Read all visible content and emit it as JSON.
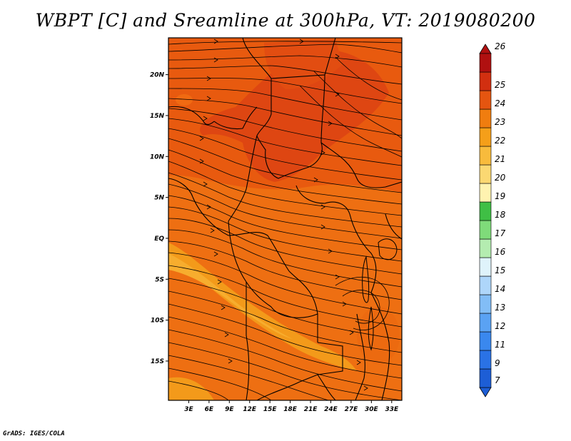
{
  "title": "WBPT [C] and Sreamline at 300hPa, VT: 2019080200",
  "credit": "GrADS: IGES/COLA",
  "map": {
    "lon_ticks": [
      "3E",
      "6E",
      "9E",
      "12E",
      "15E",
      "18E",
      "21E",
      "24E",
      "27E",
      "30E",
      "33E"
    ],
    "lat_ticks": [
      "20N",
      "15N",
      "10N",
      "5N",
      "EQ",
      "5S",
      "10S",
      "15S"
    ],
    "lon_values": [
      3,
      6,
      9,
      12,
      15,
      18,
      21,
      24,
      27,
      30,
      33
    ],
    "lat_values": [
      20,
      15,
      10,
      5,
      0,
      -5,
      -10,
      -15
    ],
    "lon_range": [
      0,
      34.5
    ],
    "lat_range": [
      -19.8,
      24.5
    ]
  },
  "colorbar": {
    "labels": [
      "7",
      "9",
      "11",
      "12",
      "13",
      "14",
      "15",
      "16",
      "17",
      "18",
      "19",
      "20",
      "21",
      "22",
      "23",
      "24",
      "25",
      "26"
    ],
    "colors": [
      "#1d5ed6",
      "#2a72e5",
      "#3a88ee",
      "#5aa2f3",
      "#82bdf6",
      "#aed6fa",
      "#dff3fb",
      "#b4ecb0",
      "#7fdb7a",
      "#3fbf45",
      "#fff3b0",
      "#fbd872",
      "#f8bb3c",
      "#f59f19",
      "#f07d0f",
      "#e55510",
      "#d22f10",
      "#b01010"
    ]
  },
  "chart_data": {
    "type": "heatmap",
    "title": "WBPT [C] and Sreamline at 300hPa, VT: 2019080200",
    "variable": "WBPT [C]",
    "level": "300hPa",
    "valid_time": "2019080200",
    "x_ticks": [
      "3E",
      "6E",
      "9E",
      "12E",
      "15E",
      "18E",
      "21E",
      "24E",
      "27E",
      "30E",
      "33E"
    ],
    "y_ticks": [
      "20N",
      "15N",
      "10N",
      "5N",
      "EQ",
      "5S",
      "10S",
      "15S"
    ],
    "color_levels": [
      7,
      9,
      11,
      12,
      13,
      14,
      15,
      16,
      17,
      18,
      19,
      20,
      21,
      22,
      23,
      24,
      25,
      26
    ],
    "dominant_range": [
      20,
      24
    ],
    "overlay": "streamlines"
  }
}
